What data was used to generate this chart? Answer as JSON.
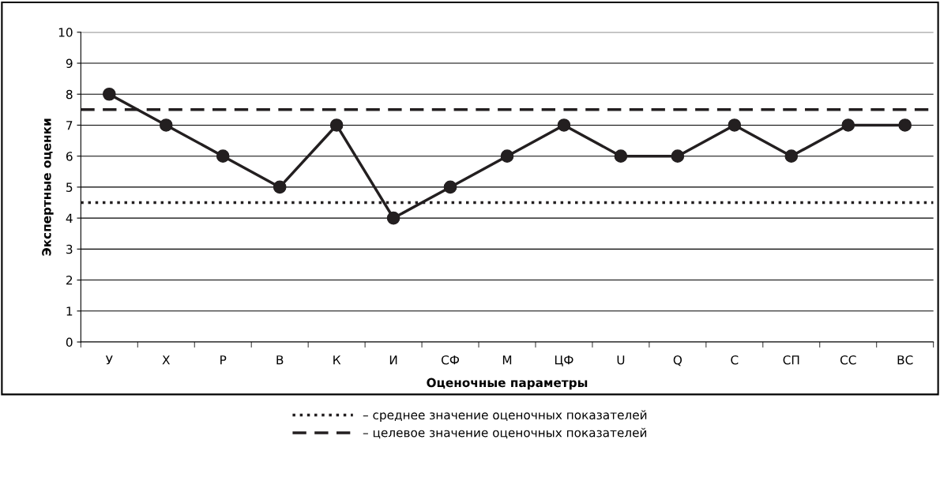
{
  "chart_data": {
    "type": "line",
    "xlabel": "Оценочные параметры",
    "ylabel": "Экспертные оценки",
    "categories": [
      "У",
      "Х",
      "Р",
      "В",
      "К",
      "И",
      "СФ",
      "М",
      "ЦФ",
      "U",
      "Q",
      "С",
      "СП",
      "СС",
      "ВС"
    ],
    "series": [
      {
        "color": "#231f20",
        "values": [
          8,
          7,
          6,
          5,
          7,
          4,
          5,
          6,
          7,
          6,
          6,
          7,
          6,
          7,
          7
        ]
      }
    ],
    "ylim": [
      0,
      10
    ],
    "yticks": [
      0,
      1,
      2,
      3,
      4,
      5,
      6,
      7,
      8,
      9,
      10
    ],
    "grid": "y",
    "marker": "circle",
    "line_style": "solid",
    "ref_lines": [
      {
        "axis": "y",
        "value": 4.5,
        "label": "– среднее значение оценочных показателей",
        "color": "#231f20",
        "line_style": "dotted"
      },
      {
        "axis": "y",
        "value": 7.5,
        "label": "– целевое значение оценочных показателей",
        "color": "#231f20",
        "line_style": "dashed"
      }
    ],
    "legend": "bottom"
  }
}
